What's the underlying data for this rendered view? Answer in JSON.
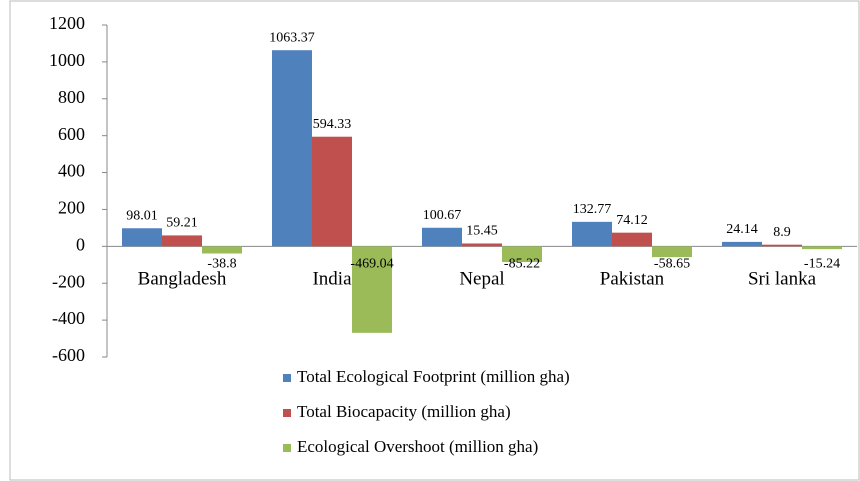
{
  "chart_data": {
    "type": "bar",
    "categories": [
      "Bangladesh",
      "India",
      "Nepal",
      "Pakistan",
      "Sri lanka"
    ],
    "series": [
      {
        "name": "Total Ecological Footprint (million gha)",
        "color": "#4f81bd",
        "values": [
          98.01,
          1063.37,
          100.67,
          132.77,
          24.14
        ]
      },
      {
        "name": "Total Biocapacity (million gha)",
        "color": "#c0504d",
        "values": [
          59.21,
          594.33,
          15.45,
          74.12,
          8.9
        ]
      },
      {
        "name": "Ecological Overshoot (million gha)",
        "color": "#9bbb59",
        "values": [
          -38.8,
          -469.04,
          -85.22,
          -58.65,
          -15.24
        ]
      }
    ],
    "ylim": [
      -600,
      1200
    ],
    "yticks": [
      -600,
      -400,
      -200,
      0,
      200,
      400,
      600,
      800,
      1000,
      1200
    ],
    "legend": "bottom"
  }
}
